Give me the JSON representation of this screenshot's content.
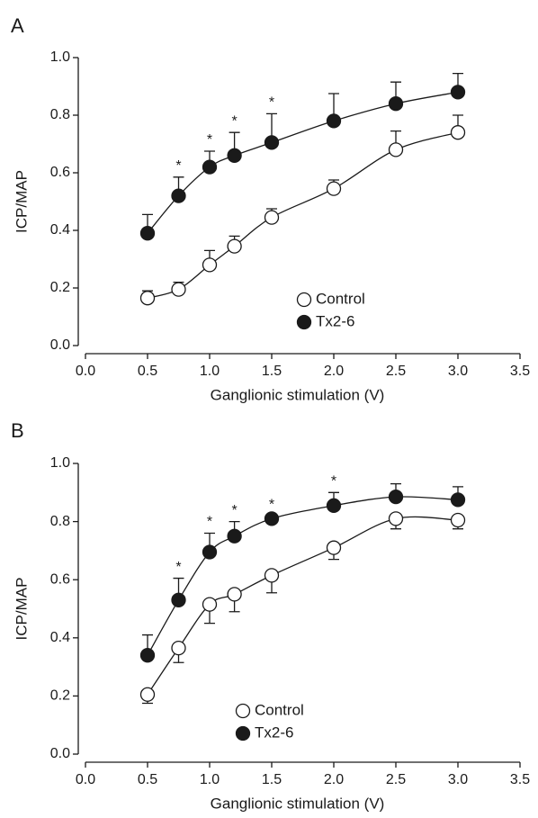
{
  "chart_data": [
    {
      "type": "line",
      "panel": "A",
      "x": [
        0.5,
        0.75,
        1.0,
        1.2,
        1.5,
        2.0,
        2.5,
        3.0
      ],
      "xlabel": "Ganglionic stimulation (V)",
      "ylabel": "ICP/MAP",
      "xlim": [
        0,
        3.5
      ],
      "ylim": [
        0,
        1
      ],
      "xticks": [
        {
          "value": 0,
          "label": "0.0"
        },
        {
          "value": 0.5,
          "label": "0.5"
        },
        {
          "value": 1,
          "label": "1.0"
        },
        {
          "value": 1.5,
          "label": "1.5"
        },
        {
          "value": 2,
          "label": "2.0"
        },
        {
          "value": 2.5,
          "label": "2.5"
        },
        {
          "value": 3,
          "label": "3.0"
        },
        {
          "value": 3.5,
          "label": "3.5"
        }
      ],
      "yticks": [
        {
          "value": 0,
          "label": "0.0"
        },
        {
          "value": 0.2,
          "label": "0.2"
        },
        {
          "value": 0.4,
          "label": "0.4"
        },
        {
          "value": 0.6,
          "label": "0.6"
        },
        {
          "value": 0.8,
          "label": "0.8"
        },
        {
          "value": 1,
          "label": "1.0"
        }
      ],
      "legend": "lower center",
      "series": [
        {
          "name": "Control",
          "color": "#ffffff",
          "values": [
            0.165,
            0.195,
            0.28,
            0.345,
            0.445,
            0.545,
            0.68,
            0.74
          ],
          "errors": [
            0.025,
            0.025,
            0.05,
            0.035,
            0.03,
            0.03,
            0.065,
            0.06
          ],
          "error_direction": "up"
        },
        {
          "name": "Tx2-6",
          "color": "#1a1a1a",
          "values": [
            0.39,
            0.52,
            0.62,
            0.66,
            0.705,
            0.78,
            0.84,
            0.88
          ],
          "errors": [
            0.065,
            0.065,
            0.055,
            0.08,
            0.1,
            0.095,
            0.075,
            0.065
          ],
          "error_direction": "up"
        }
      ],
      "annotations": [
        {
          "text": "*",
          "x": 0.75
        },
        {
          "text": "*",
          "x": 1.0
        },
        {
          "text": "*",
          "x": 1.2
        },
        {
          "text": "*",
          "x": 1.5
        }
      ]
    },
    {
      "type": "line",
      "panel": "B",
      "x": [
        0.5,
        0.75,
        1.0,
        1.2,
        1.5,
        2.0,
        2.5,
        3.0
      ],
      "xlabel": "Ganglionic stimulation (V)",
      "ylabel": "ICP/MAP",
      "xlim": [
        0,
        3.5
      ],
      "ylim": [
        0,
        1
      ],
      "xticks": [
        {
          "value": 0,
          "label": "0.0"
        },
        {
          "value": 0.5,
          "label": "0.5"
        },
        {
          "value": 1,
          "label": "1.0"
        },
        {
          "value": 1.5,
          "label": "1.5"
        },
        {
          "value": 2,
          "label": "2.0"
        },
        {
          "value": 2.5,
          "label": "2.5"
        },
        {
          "value": 3,
          "label": "3.0"
        },
        {
          "value": 3.5,
          "label": "3.5"
        }
      ],
      "yticks": [
        {
          "value": 0,
          "label": "0.0"
        },
        {
          "value": 0.2,
          "label": "0.2"
        },
        {
          "value": 0.4,
          "label": "0.4"
        },
        {
          "value": 0.6,
          "label": "0.6"
        },
        {
          "value": 0.8,
          "label": "0.8"
        },
        {
          "value": 1,
          "label": "1.0"
        }
      ],
      "legend": "lower center",
      "series": [
        {
          "name": "Control",
          "color": "#ffffff",
          "values": [
            0.205,
            0.365,
            0.515,
            0.55,
            0.615,
            0.71,
            0.81,
            0.805
          ],
          "errors": [
            0.03,
            0.05,
            0.065,
            0.06,
            0.06,
            0.04,
            0.035,
            0.03
          ],
          "error_direction": "down"
        },
        {
          "name": "Tx2-6",
          "color": "#1a1a1a",
          "values": [
            0.34,
            0.53,
            0.695,
            0.75,
            0.81,
            0.855,
            0.885,
            0.875
          ],
          "errors": [
            0.07,
            0.075,
            0.065,
            0.05,
            0.01,
            0.045,
            0.045,
            0.045
          ],
          "error_direction": "up"
        }
      ],
      "annotations": [
        {
          "text": "*",
          "x": 0.75
        },
        {
          "text": "*",
          "x": 1.0
        },
        {
          "text": "*",
          "x": 1.2
        },
        {
          "text": "*",
          "x": 1.5
        },
        {
          "text": "*",
          "x": 2.0
        }
      ]
    }
  ]
}
